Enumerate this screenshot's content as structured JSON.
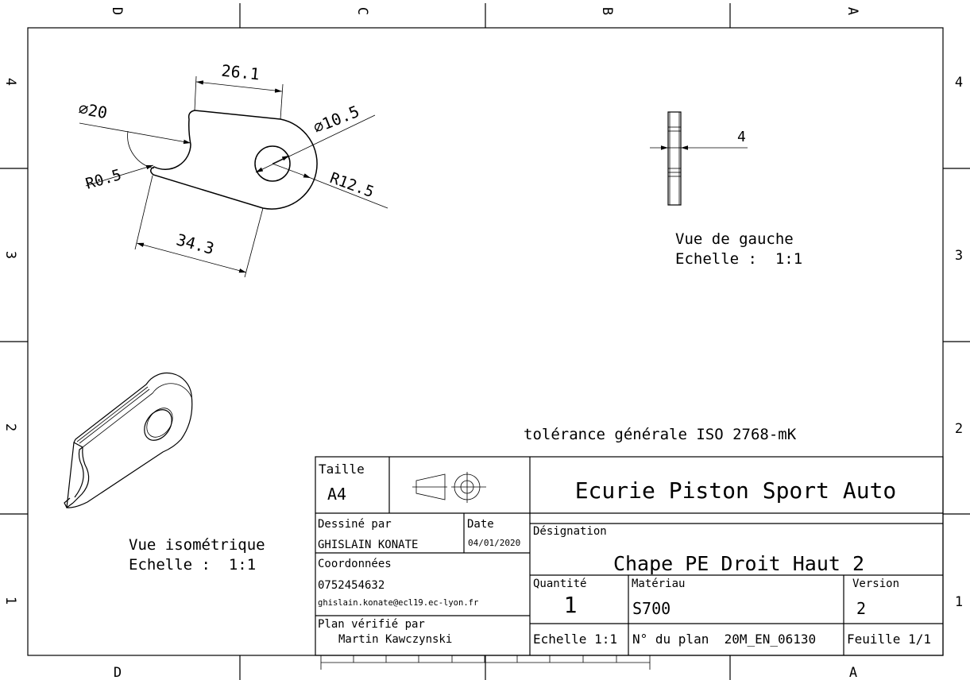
{
  "border": {
    "top_letters": [
      "D",
      "C",
      "B",
      "A"
    ],
    "bottom_letters": [
      "D",
      "A"
    ],
    "side_numbers": [
      "4",
      "3",
      "2",
      "1"
    ]
  },
  "top_view": {
    "dims": {
      "width_top": "26.1",
      "dia_notch": "∅20",
      "dia_hole": "∅10.5",
      "r_small": "R0.5",
      "r_end": "R12.5",
      "length": "34.3"
    }
  },
  "left_view": {
    "dim_thickness": "4",
    "caption_title": "Vue de gauche",
    "caption_scale": "Echelle :  1:1"
  },
  "iso_view": {
    "caption_title": "Vue isométrique",
    "caption_scale": "Echelle :  1:1"
  },
  "tolerance_note": "tolérance générale ISO 2768-mK",
  "title_block": {
    "taille_label": "Taille",
    "taille_value": "A4",
    "company": "Ecurie Piston Sport Auto",
    "dessine_label": "Dessiné par",
    "dessine_value": "GHISLAIN KONATE",
    "date_label": "Date",
    "date_value": "04/01/2020",
    "coord_label": "Coordonnées",
    "phone": "0752454632",
    "email": "ghislain.konate@ecl19.ec-lyon.fr",
    "verif_label": "Plan vérifié par",
    "verif_value": "Martin Kawczynski",
    "designation_label": "Désignation",
    "designation_value": "Chape PE Droit Haut 2",
    "quantite_label": "Quantité",
    "quantite_value": "1",
    "materiau_label": "Matériau",
    "materiau_value": "S700",
    "version_label": "Version",
    "version_value": "2",
    "echelle": "Echelle 1:1",
    "plan_no": "N° du plan  20M_EN_06130",
    "feuille": "Feuille 1/1"
  }
}
